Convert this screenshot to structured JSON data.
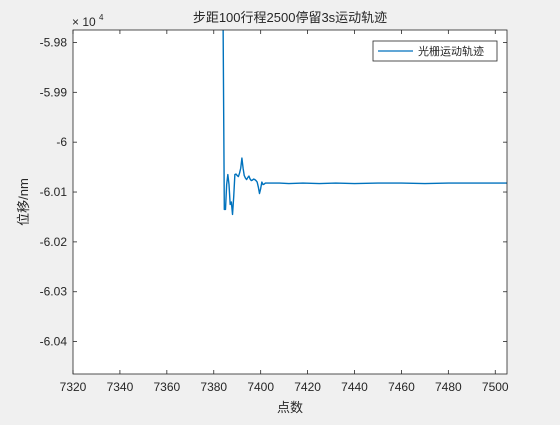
{
  "chart_data": {
    "type": "line",
    "title": "步距100行程2500停留3s运动轨迹",
    "xlabel": "点数",
    "ylabel": "位移/nm",
    "exponent_label": "× 10",
    "exponent_power": "4",
    "xlim": [
      7320,
      7505
    ],
    "ylim": [
      -6.0465,
      -5.9775
    ],
    "x_ticks": [
      7320,
      7340,
      7360,
      7380,
      7400,
      7420,
      7440,
      7460,
      7480,
      7500
    ],
    "x_tick_labels": [
      "7320",
      "7340",
      "7360",
      "7380",
      "7400",
      "7420",
      "7440",
      "7460",
      "7480",
      "7500"
    ],
    "y_ticks": [
      -5.98,
      -5.99,
      -6.0,
      -6.01,
      -6.02,
      -6.03,
      -6.04
    ],
    "y_tick_labels": [
      "-5.98",
      "-5.99",
      "-6",
      "-6.01",
      "-6.02",
      "-6.03",
      "-6.04"
    ],
    "grid": false,
    "legend_position": "top-right",
    "series": [
      {
        "name": "光栅运动轨迹",
        "color": "#0072BD",
        "x": [
          7384,
          7384.5,
          7385,
          7385.5,
          7386,
          7386.5,
          7387,
          7387.5,
          7388,
          7388.5,
          7389,
          7389.5,
          7390,
          7390.5,
          7391,
          7391.5,
          7392,
          7392.5,
          7393,
          7393.5,
          7394,
          7394.5,
          7395,
          7395.5,
          7396,
          7396.5,
          7397,
          7397.5,
          7398,
          7398.5,
          7399,
          7399.5,
          7400,
          7400.5,
          7401,
          7401.5,
          7402,
          7403,
          7404,
          7405,
          7408,
          7412,
          7418,
          7425,
          7432,
          7440,
          7450,
          7460,
          7470,
          7480,
          7490,
          7500,
          7505
        ],
        "y": [
          -5.9775,
          -6.0135,
          -6.0135,
          -6.0085,
          -6.0065,
          -6.0085,
          -6.0125,
          -6.012,
          -6.0145,
          -6.011,
          -6.0065,
          -6.0064,
          -6.0067,
          -6.0069,
          -6.0062,
          -6.0052,
          -6.0032,
          -6.0052,
          -6.0067,
          -6.0072,
          -6.0075,
          -6.0071,
          -6.0068,
          -6.0074,
          -6.0077,
          -6.0076,
          -6.0074,
          -6.0075,
          -6.0077,
          -6.008,
          -6.009,
          -6.0103,
          -6.0093,
          -6.008,
          -6.0085,
          -6.0084,
          -6.0082,
          -6.0082,
          -6.0082,
          -6.0082,
          -6.0082,
          -6.0083,
          -6.0082,
          -6.0083,
          -6.0082,
          -6.0083,
          -6.0082,
          -6.0082,
          -6.0083,
          -6.0082,
          -6.0082,
          -6.0082,
          -6.0082
        ]
      }
    ]
  }
}
